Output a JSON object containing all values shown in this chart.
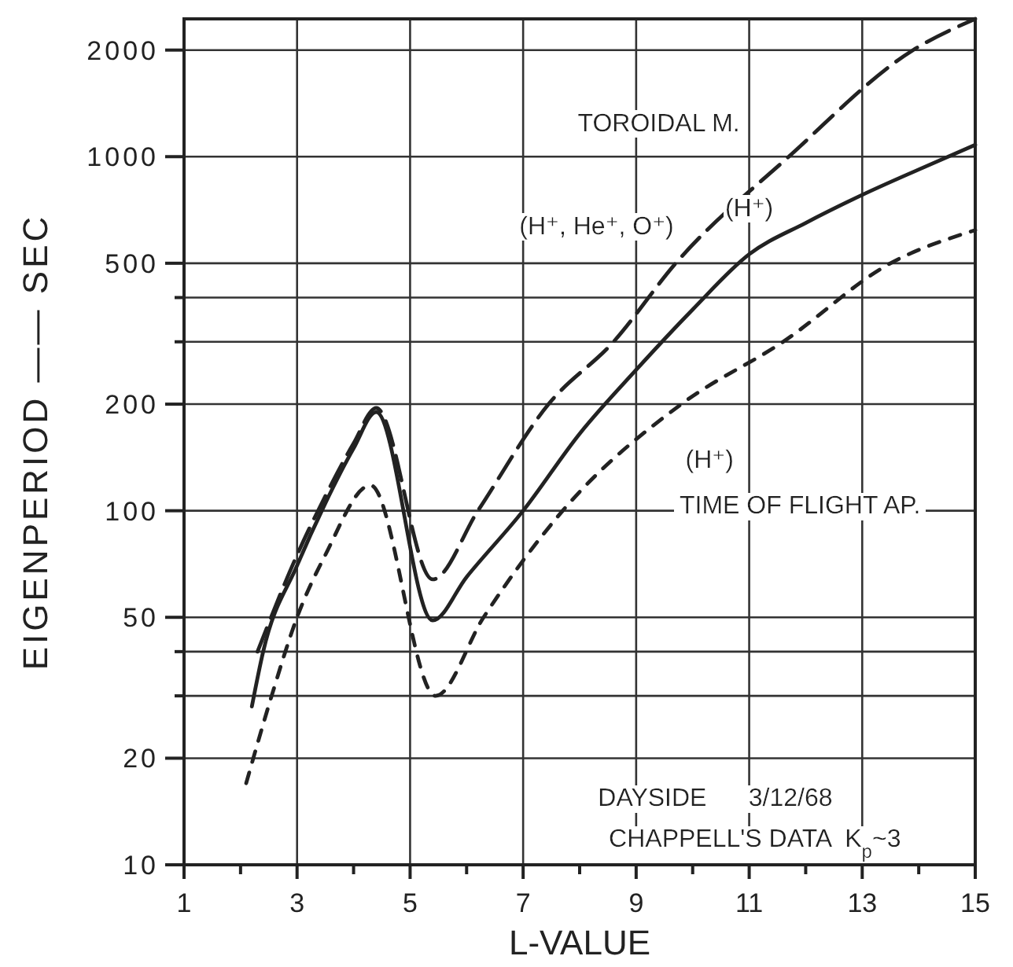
{
  "chart_data": {
    "type": "line",
    "xlabel": "L-VALUE",
    "ylabel": "EIGENPERIOD —— SEC",
    "log": "y",
    "grid": true,
    "xlim": [
      1,
      15
    ],
    "xticks": [
      1,
      {
        "value": 2,
        "label": null
      },
      3,
      {
        "value": 4,
        "label": null
      },
      5,
      {
        "value": 6,
        "label": null
      },
      7,
      {
        "value": 8,
        "label": null
      },
      9,
      {
        "value": 10,
        "label": null
      },
      11,
      {
        "value": 12,
        "label": null
      },
      13,
      {
        "value": 14,
        "label": null
      },
      15
    ],
    "ylim": [
      10,
      2450
    ],
    "yticks": [
      10,
      20,
      {
        "value": 30,
        "label": null
      },
      {
        "value": 40,
        "label": null
      },
      50,
      100,
      200,
      {
        "value": 300,
        "label": null
      },
      {
        "value": 400,
        "label": null
      },
      500,
      1000,
      2000
    ],
    "series": [
      {
        "color": "#222222",
        "line_style": "dashed",
        "x": [
          2.3,
          3,
          3.5,
          4,
          4.4,
          5.4,
          6.2,
          7.45,
          8.6,
          9.7,
          11.7,
          13.9,
          15
        ],
        "values": [
          40,
          75,
          110,
          155,
          195,
          64,
          100,
          200,
          300,
          500,
          1000,
          2000,
          2450
        ]
      },
      {
        "color": "#222222",
        "line_style": "solid",
        "x": [
          2.2,
          2.4,
          3,
          3.5,
          4,
          4.4,
          5.4,
          6,
          7,
          8,
          9,
          10,
          11,
          12,
          13,
          14,
          15
        ],
        "values": [
          28,
          40,
          70,
          105,
          150,
          190,
          49,
          65,
          100,
          165,
          250,
          370,
          530,
          650,
          780,
          920,
          1080
        ]
      },
      {
        "color": "#222222",
        "line_style": "dotted",
        "x": [
          2.1,
          2.55,
          3,
          3.5,
          4.3,
          5.45,
          6.3,
          7.7,
          9.8,
          11.6,
          13.5,
          15
        ],
        "values": [
          17,
          30,
          50,
          75,
          118,
          30,
          50,
          100,
          200,
          300,
          500,
          620
        ]
      }
    ],
    "annotations": [
      "TOROIDAL M.",
      "(H⁺, He⁺, O⁺)",
      "(H⁺)",
      "(H⁺)",
      "TIME OF FLIGHT AP.",
      "DAYSIDE      3/12/68",
      "CHAPPELL'S DATA  K$_{p}$~3"
    ]
  }
}
